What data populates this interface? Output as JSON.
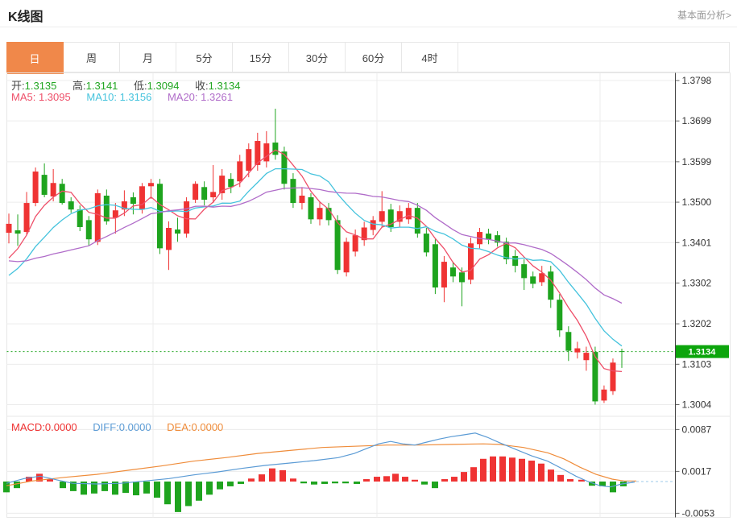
{
  "header": {
    "title": "K线图",
    "link": "基本面分析>"
  },
  "tabs": {
    "items": [
      "日",
      "周",
      "月",
      "5分",
      "15分",
      "30分",
      "60分",
      "4时"
    ],
    "active_index": 0,
    "active_color": "#f0884a"
  },
  "legend": {
    "ohlc": [
      {
        "label": "开:",
        "value": "1.3135"
      },
      {
        "label": "高:",
        "value": "1.3141"
      },
      {
        "label": "低:",
        "value": "1.3094"
      },
      {
        "label": "收:",
        "value": "1.3134"
      }
    ],
    "ma": [
      {
        "label": "MA5:",
        "value": "1.3095",
        "color": "#ee4f69"
      },
      {
        "label": "MA10:",
        "value": "1.3156",
        "color": "#45c3dd"
      },
      {
        "label": "MA20:",
        "value": "1.3261",
        "color": "#b06cc9"
      }
    ]
  },
  "macd_legend": [
    {
      "label": "MACD:",
      "value": "0.0000",
      "color": "#ef3333"
    },
    {
      "label": "DIFF:",
      "value": "0.0000",
      "color": "#5b9bd5"
    },
    {
      "label": "DEA:",
      "value": "0.0000",
      "color": "#ef8c3a"
    }
  ],
  "price_axis": {
    "labels": [
      "1.3798",
      "1.3699",
      "1.3599",
      "1.3500",
      "1.3401",
      "1.3302",
      "1.3202",
      "1.3103",
      "1.3004"
    ],
    "last_price": "1.3134"
  },
  "macd_axis": {
    "labels": [
      "0.0087",
      "0.0017",
      "-0.0053"
    ]
  },
  "colors": {
    "candle_up": "#ef3333",
    "candle_down": "#1ea41e",
    "ma5": "#ee4f69",
    "ma10": "#45c3dd",
    "ma20": "#b06cc9",
    "diff_line": "#5b9bd5",
    "dea_line": "#ef8c3a",
    "last_price_line": "#21a621",
    "tag_bg": "#0ca50c",
    "grid": "#ececec",
    "axis_line": "#444444",
    "border": "#e7e7e7"
  },
  "chart_data": {
    "type": "candlestick",
    "title": "K线图",
    "price_axis_ticks": [
      1.3798,
      1.3699,
      1.3599,
      1.35,
      1.3401,
      1.3302,
      1.3202,
      1.3103,
      1.3004
    ],
    "last_price": 1.3134,
    "ohlc_legend": {
      "open": 1.3135,
      "high": 1.3141,
      "low": 1.3094,
      "close": 1.3134
    },
    "ma_values": {
      "MA5": 1.3095,
      "MA10": 1.3156,
      "MA20": 1.3261
    },
    "candles": [
      [
        1.3425,
        1.3472,
        1.3399,
        1.3447
      ],
      [
        1.3431,
        1.347,
        1.3393,
        1.3423
      ],
      [
        1.3427,
        1.3525,
        1.3419,
        1.3498
      ],
      [
        1.3498,
        1.3585,
        1.349,
        1.3575
      ],
      [
        1.3567,
        1.3595,
        1.3512,
        1.3518
      ],
      [
        1.3514,
        1.3581,
        1.3502,
        1.3547
      ],
      [
        1.3545,
        1.3557,
        1.3494,
        1.3498
      ],
      [
        1.3502,
        1.3512,
        1.3474,
        1.3482
      ],
      [
        1.3482,
        1.3492,
        1.3429,
        1.3439
      ],
      [
        1.3456,
        1.3466,
        1.3393,
        1.3409
      ],
      [
        1.3403,
        1.3531,
        1.3395,
        1.3522
      ],
      [
        1.3516,
        1.3531,
        1.3445,
        1.3453
      ],
      [
        1.3462,
        1.3498,
        1.3423,
        1.348
      ],
      [
        1.3482,
        1.3529,
        1.3466,
        1.3502
      ],
      [
        1.3512,
        1.3524,
        1.347,
        1.3496
      ],
      [
        1.3482,
        1.3547,
        1.3472,
        1.3539
      ],
      [
        1.3539,
        1.3557,
        1.3508,
        1.3547
      ],
      [
        1.3545,
        1.3557,
        1.3373,
        1.3387
      ],
      [
        1.3383,
        1.3453,
        1.3334,
        1.3437
      ],
      [
        1.3433,
        1.3462,
        1.3403,
        1.3423
      ],
      [
        1.3423,
        1.3512,
        1.3413,
        1.3502
      ],
      [
        1.3506,
        1.3551,
        1.3498,
        1.3545
      ],
      [
        1.3537,
        1.3551,
        1.3492,
        1.3506
      ],
      [
        1.3512,
        1.3591,
        1.3498,
        1.3525
      ],
      [
        1.3522,
        1.3581,
        1.3506,
        1.3565
      ],
      [
        1.3557,
        1.3571,
        1.3522,
        1.3537
      ],
      [
        1.3551,
        1.3616,
        1.3537,
        1.36
      ],
      [
        1.3577,
        1.3644,
        1.3561,
        1.363
      ],
      [
        1.3591,
        1.367,
        1.3577,
        1.365
      ],
      [
        1.36,
        1.3674,
        1.3585,
        1.3644
      ],
      [
        1.3646,
        1.3729,
        1.3604,
        1.3616
      ],
      [
        1.3624,
        1.3636,
        1.3531,
        1.3545
      ],
      [
        1.3557,
        1.3571,
        1.3486,
        1.3498
      ],
      [
        1.3498,
        1.3537,
        1.3482,
        1.3516
      ],
      [
        1.3512,
        1.3522,
        1.3447,
        1.3458
      ],
      [
        1.3458,
        1.3502,
        1.3443,
        1.3486
      ],
      [
        1.3486,
        1.3498,
        1.3443,
        1.3456
      ],
      [
        1.3456,
        1.3468,
        1.3324,
        1.3334
      ],
      [
        1.3328,
        1.3413,
        1.3318,
        1.3403
      ],
      [
        1.3379,
        1.3433,
        1.3367,
        1.3419
      ],
      [
        1.3407,
        1.3452,
        1.3393,
        1.3438
      ],
      [
        1.3432,
        1.3466,
        1.3419,
        1.3456
      ],
      [
        1.3452,
        1.3527,
        1.3439,
        1.3478
      ],
      [
        1.3482,
        1.3496,
        1.3427,
        1.3439
      ],
      [
        1.3452,
        1.3492,
        1.3439,
        1.3478
      ],
      [
        1.3458,
        1.3498,
        1.3447,
        1.3486
      ],
      [
        1.3486,
        1.3498,
        1.3413,
        1.3423
      ],
      [
        1.3423,
        1.3437,
        1.3367,
        1.3377
      ],
      [
        1.3397,
        1.3409,
        1.3275,
        1.3291
      ],
      [
        1.3291,
        1.3368,
        1.3255,
        1.3354
      ],
      [
        1.334,
        1.3354,
        1.3304,
        1.3318
      ],
      [
        1.3328,
        1.334,
        1.3245,
        1.3304
      ],
      [
        1.331,
        1.3413,
        1.3299,
        1.3399
      ],
      [
        1.3397,
        1.3437,
        1.3387,
        1.3427
      ],
      [
        1.3423,
        1.3435,
        1.3397,
        1.3409
      ],
      [
        1.3419,
        1.3429,
        1.3391,
        1.3401
      ],
      [
        1.3403,
        1.3413,
        1.3348,
        1.336
      ],
      [
        1.3368,
        1.3383,
        1.3328,
        1.3344
      ],
      [
        1.3348,
        1.336,
        1.3285,
        1.3314
      ],
      [
        1.3318,
        1.333,
        1.3289,
        1.33
      ],
      [
        1.3304,
        1.3344,
        1.3295,
        1.3326
      ],
      [
        1.333,
        1.3344,
        1.3241,
        1.3261
      ],
      [
        1.3261,
        1.3275,
        1.317,
        1.3186
      ],
      [
        1.3182,
        1.3196,
        1.3111,
        1.3136
      ],
      [
        1.3132,
        1.3158,
        1.3117,
        1.3142
      ],
      [
        1.3113,
        1.3146,
        1.3087,
        1.3131
      ],
      [
        1.3133,
        1.3146,
        1.3004,
        1.3012
      ],
      [
        1.3014,
        1.3051,
        1.3008,
        1.3041
      ],
      [
        1.3037,
        1.3117,
        1.3028,
        1.3107
      ],
      [
        1.3135,
        1.3141,
        1.3094,
        1.3134
      ]
    ],
    "ma_periods": [
      5,
      10,
      20
    ],
    "pre_closes_for_ma": [
      1.347,
      1.3465,
      1.3455,
      1.3445,
      1.3435,
      1.3425,
      1.3405,
      1.338,
      1.334,
      1.33,
      1.327,
      1.3255,
      1.326,
      1.3275,
      1.329,
      1.331,
      1.331,
      1.333,
      1.335,
      1.338
    ],
    "macd": {
      "axis_ticks": [
        0.0087,
        0.0017,
        -0.0053
      ],
      "hist": [
        [
          8,
          -0.0018
        ],
        [
          21,
          -0.0011
        ],
        [
          36,
          0.0008
        ],
        [
          49,
          0.0013
        ],
        [
          62,
          0.0004
        ],
        [
          78,
          -0.0011
        ],
        [
          91,
          -0.0016
        ],
        [
          104,
          -0.0022
        ],
        [
          117,
          -0.002
        ],
        [
          130,
          -0.0016
        ],
        [
          143,
          -0.0022
        ],
        [
          156,
          -0.0019
        ],
        [
          169,
          -0.0023
        ],
        [
          182,
          -0.002
        ],
        [
          195,
          -0.0027
        ],
        [
          208,
          -0.0038
        ],
        [
          221,
          -0.0051
        ],
        [
          234,
          -0.0041
        ],
        [
          247,
          -0.0032
        ],
        [
          260,
          -0.0022
        ],
        [
          273,
          -0.0013
        ],
        [
          286,
          -0.0008
        ],
        [
          299,
          -0.0004
        ],
        [
          312,
          0.0005
        ],
        [
          325,
          0.0012
        ],
        [
          338,
          0.0022
        ],
        [
          351,
          0.0019
        ],
        [
          364,
          0.0005
        ],
        [
          377,
          -0.0003
        ],
        [
          390,
          -0.0005
        ],
        [
          403,
          -0.0004
        ],
        [
          416,
          -0.0003
        ],
        [
          429,
          -0.0003
        ],
        [
          443,
          -0.0004
        ],
        [
          455,
          0.0004
        ],
        [
          468,
          0.0008
        ],
        [
          480,
          0.0009
        ],
        [
          491,
          0.0013
        ],
        [
          503,
          0.0008
        ],
        [
          515,
          0.0003
        ],
        [
          527,
          -0.0005
        ],
        [
          540,
          -0.0011
        ],
        [
          552,
          0.0004
        ],
        [
          564,
          0.0008
        ],
        [
          576,
          0.0016
        ],
        [
          588,
          0.0024
        ],
        [
          600,
          0.0038
        ],
        [
          612,
          0.0042
        ],
        [
          624,
          0.0042
        ],
        [
          636,
          0.004
        ],
        [
          648,
          0.0038
        ],
        [
          660,
          0.0035
        ],
        [
          672,
          0.003
        ],
        [
          684,
          0.002
        ],
        [
          696,
          0.0011
        ],
        [
          708,
          0.0004
        ],
        [
          722,
          0.0003
        ],
        [
          735,
          -0.0007
        ],
        [
          748,
          -0.0008
        ],
        [
          761,
          -0.0018
        ],
        [
          774,
          -0.0008
        ]
      ],
      "diff": [
        [
          8,
          -0.0003
        ],
        [
          30,
          0.0005
        ],
        [
          50,
          0.0009
        ],
        [
          70,
          0.0003
        ],
        [
          90,
          -0.0003
        ],
        [
          120,
          -0.0004
        ],
        [
          150,
          -0.0003
        ],
        [
          180,
          0.0001
        ],
        [
          210,
          0.0005
        ],
        [
          240,
          0.0011
        ],
        [
          270,
          0.0016
        ],
        [
          300,
          0.0022
        ],
        [
          330,
          0.0027
        ],
        [
          360,
          0.0031
        ],
        [
          390,
          0.0035
        ],
        [
          420,
          0.004
        ],
        [
          440,
          0.0047
        ],
        [
          455,
          0.0055
        ],
        [
          470,
          0.0063
        ],
        [
          485,
          0.0067
        ],
        [
          500,
          0.0063
        ],
        [
          515,
          0.0061
        ],
        [
          530,
          0.0066
        ],
        [
          545,
          0.0071
        ],
        [
          560,
          0.0075
        ],
        [
          575,
          0.0078
        ],
        [
          590,
          0.0081
        ],
        [
          605,
          0.0074
        ],
        [
          620,
          0.0065
        ],
        [
          640,
          0.0054
        ],
        [
          660,
          0.0043
        ],
        [
          680,
          0.0034
        ],
        [
          700,
          0.002
        ],
        [
          715,
          0.0009
        ],
        [
          730,
          0.0
        ],
        [
          745,
          -0.0007
        ],
        [
          758,
          -0.0009
        ],
        [
          772,
          -0.0004
        ],
        [
          788,
          -0.0001
        ]
      ],
      "dea": [
        [
          8,
          -0.0007
        ],
        [
          40,
          0.0001
        ],
        [
          80,
          0.0007
        ],
        [
          120,
          0.0012
        ],
        [
          160,
          0.0019
        ],
        [
          200,
          0.0026
        ],
        [
          240,
          0.0034
        ],
        [
          280,
          0.004
        ],
        [
          320,
          0.0047
        ],
        [
          360,
          0.0052
        ],
        [
          400,
          0.0057
        ],
        [
          440,
          0.0059
        ],
        [
          480,
          0.0061
        ],
        [
          520,
          0.0061
        ],
        [
          560,
          0.0062
        ],
        [
          600,
          0.0063
        ],
        [
          620,
          0.0062
        ],
        [
          650,
          0.0057
        ],
        [
          680,
          0.0048
        ],
        [
          700,
          0.0038
        ],
        [
          720,
          0.0024
        ],
        [
          740,
          0.0012
        ],
        [
          760,
          0.0004
        ],
        [
          775,
          0.0001
        ],
        [
          790,
          0.0001
        ]
      ],
      "zero_dash_x": [
        772,
        836
      ]
    }
  }
}
